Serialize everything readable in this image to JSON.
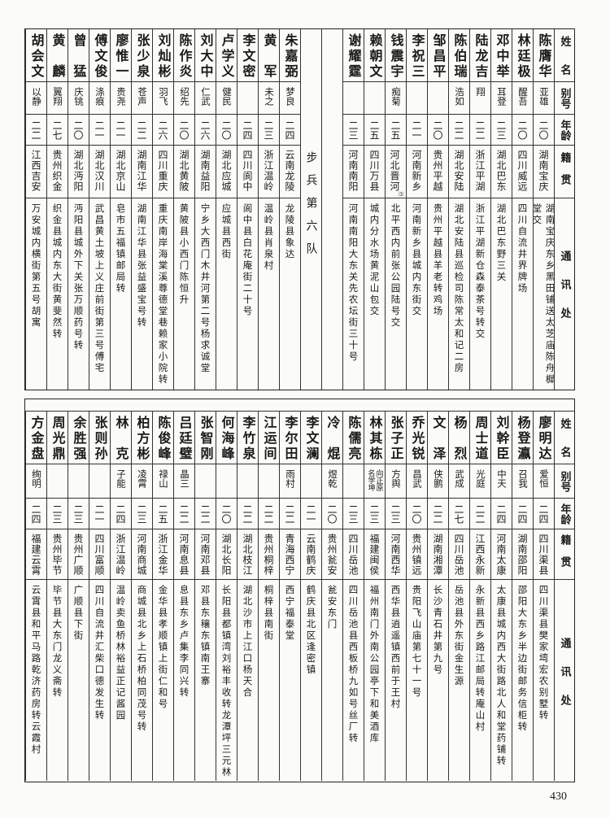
{
  "headers": {
    "name": "姓名",
    "alias": "别号",
    "age": "年龄",
    "origin": "籍贯",
    "address": "通讯处"
  },
  "division_label": "步兵第六队",
  "top": {
    "right_rows": [
      {
        "name": "陈膺华",
        "alias": "亚雄",
        "age": "二〇",
        "origin": "湖南宝庆",
        "address": "湖南宝庆东乡黑田铺送太芝庙陈舟樨堂交"
      },
      {
        "name": "林廷极",
        "alias": "醒吾",
        "age": "二〇",
        "origin": "四川威远",
        "address": "四川自流井界牌场"
      },
      {
        "name": "邓中举",
        "alias": "耳登",
        "age": "二三",
        "origin": "湖北巴东",
        "address": "湖北巴东野三关"
      },
      {
        "name": "陆龙吉",
        "alias": "翔",
        "age": "二二",
        "origin": "浙江平湖",
        "address": "浙江平湖新仓森泰茶号转交"
      },
      {
        "name": "陈伯瑞",
        "alias": "浩如",
        "age": "二二",
        "origin": "湖北安陆",
        "address": "湖北安陆县巡检司陈常太和记二房"
      },
      {
        "name": "邹昌平",
        "alias": "",
        "age": "二〇",
        "origin": "贵州平越",
        "address": "贵州平越县羊老转鸡场"
      },
      {
        "name": "李祝三",
        "alias": "",
        "age": "二一",
        "origin": "河南新乡",
        "address": "河南新乡县城内东街交"
      },
      {
        "name": "钱震宇",
        "alias": "痴菊",
        "age": "二五",
        "origin": "河北晋河",
        "origin_note": "⑶",
        "address": "北平西内前张公园陆号交"
      },
      {
        "name": "赖朝文",
        "alias": "",
        "age": "二五",
        "origin": "四川万县",
        "address": "城内分水场黄泥山包交"
      },
      {
        "name": "谢耀霆",
        "alias": "",
        "age": "二三",
        "origin": "河南南阳",
        "address": "河南南阳大东关先农坛街三十号"
      }
    ],
    "left_rows": [
      {
        "name": "朱嘉弼",
        "alias": "梦良",
        "age": "二四",
        "origin": "云南龙陵",
        "address": "龙陵县象达"
      },
      {
        "name": "黄军",
        "alias": "未之",
        "age": "二三",
        "origin": "浙江温岭",
        "address": "温岭县肖泉村"
      },
      {
        "name": "李文密",
        "alias": "",
        "age": "二四",
        "origin": "四川阆中",
        "address": "阆中县白花庵街二十号"
      },
      {
        "name": "卢学义",
        "alias": "健民",
        "age": "二〇",
        "origin": "湖北应城",
        "address": "应城县西街"
      },
      {
        "name": "刘大中",
        "alias": "仁武",
        "age": "二六",
        "origin": "湖南益阳",
        "address": "宁乡大西门木井河第二号杨求诚堂"
      },
      {
        "name": "陈作炎",
        "alias": "绍先",
        "age": "二〇",
        "origin": "湖北黄陂",
        "address": "黄陂县小西门陈恒升"
      },
      {
        "name": "刘灿彬",
        "alias": "羽飞",
        "age": "二六",
        "origin": "四川重庆",
        "address": "重庆南岸海棠溪尊德堂巷赖家小院转"
      },
      {
        "name": "张少泉",
        "alias": "苍声",
        "age": "二二",
        "origin": "湖南江华",
        "address": "湖南江华县张益盛宝号转"
      },
      {
        "name": "廖惟一",
        "alias": "贵尧",
        "age": "二一",
        "origin": "湖北京山",
        "address": "皂市五福镇邮局转"
      },
      {
        "name": "傅文俊",
        "alias": "涤痕",
        "age": "二一",
        "origin": "湖北汉川",
        "address": "武昌黄土坡上义庄前街第三号傅宅"
      },
      {
        "name": "曾猛",
        "alias": "庆铫",
        "age": "二〇",
        "origin": "湖北沔阳",
        "address": "沔阳县城外下关张万顺药号转"
      },
      {
        "name": "黄麟",
        "alias": "翼翔",
        "age": "二七",
        "origin": "贵州织金",
        "address": "织金县城内东大街黄斐然转"
      },
      {
        "name": "胡会文",
        "alias": "以静",
        "age": "二二",
        "origin": "江西吉安",
        "address": "万安城内横街第五号胡寓"
      }
    ]
  },
  "bottom": {
    "rows": [
      {
        "name": "廖明达",
        "alias": "爱恒",
        "age": "二四",
        "origin": "四川渠县",
        "address": "四川渠县樊家塆宏农别墅转"
      },
      {
        "name": "杨登瀛",
        "alias": "召我",
        "age": "二四",
        "origin": "湖南邵阳",
        "address": "邵阳大东乡半边街邮务信柜转"
      },
      {
        "name": "刘幹臣",
        "alias": "中天",
        "age": "二四",
        "origin": "河南太康",
        "address": "太康县城内西大街路北人和堂药铺转"
      },
      {
        "name": "周士道",
        "alias": "光庭",
        "age": "二二",
        "origin": "江西永新",
        "address": "永新县西乡路江邮局转庵山村"
      },
      {
        "name": "杨烈",
        "alias": "武成",
        "age": "二七",
        "origin": "四川岳池",
        "address": "岳池县外东街金生源"
      },
      {
        "name": "文泽",
        "alias": "侠鹏",
        "age": "二二",
        "origin": "湖南湘潭",
        "address": "长沙青石井第九号"
      },
      {
        "name": "乔光锐",
        "alias": "昌武",
        "age": "二〇",
        "origin": "贵州镇远",
        "address": "贵阳飞山庙第七十一号"
      },
      {
        "name": "张子正",
        "alias": "方舆",
        "age": "二三",
        "origin": "河南西华",
        "address": "西华县逍遥镇西前于王村"
      },
      {
        "name": "林其栋",
        "alias": "向正原名学坤",
        "age": "二三",
        "origin": "福建闽侯",
        "address": "福州南门外南公园亭下和美酒库"
      },
      {
        "name": "陈儒亮",
        "alias": "",
        "age": "二三",
        "origin": "四川岳池",
        "address": "四川岳池县西板桥九如号丝厂转"
      },
      {
        "name": "冷焜",
        "alias": "煜乾",
        "age": "二〇",
        "origin": "贵州瓮安",
        "address": "瓮安东门"
      },
      {
        "name": "李文澜",
        "alias": "",
        "age": "二一",
        "origin": "云南鹤庆",
        "address": "鹤庆县北区逢密镇"
      },
      {
        "name": "李尔田",
        "alias": "雨村",
        "age": "二二",
        "origin": "青海西宁",
        "address": "西宁福泰堂"
      },
      {
        "name": "江运间",
        "alias": "",
        "age": "二二",
        "origin": "贵州桐梓",
        "address": "桐梓县南街"
      },
      {
        "name": "李竹泉",
        "alias": "",
        "age": "二二",
        "origin": "湖北枝江",
        "address": "湖北沙市上江口杨天合"
      },
      {
        "name": "何海峰",
        "alias": "",
        "age": "二〇",
        "origin": "湖北长阳",
        "address": "长阳县都镇湾刘裕丰收转龙潭坪三元林"
      },
      {
        "name": "张智刚",
        "alias": "",
        "age": "二二",
        "origin": "河南邓县",
        "address": "邓县东穰东镇南王寨"
      },
      {
        "name": "吕廷璧",
        "alias": "晶三",
        "age": "二二",
        "origin": "河南息县",
        "address": "息县东乡卢集李同兴转"
      },
      {
        "name": "陈俊峰",
        "alias": "禄山",
        "age": "二五",
        "origin": "浙江金华",
        "address": "金华县孝顺镇上街仁和号"
      },
      {
        "name": "柏方彬",
        "alias": "凌霄",
        "age": "二三",
        "origin": "河南商城",
        "address": "商城县北乡上石桥柏同茂号转"
      },
      {
        "name": "林克",
        "alias": "子能",
        "age": "二四",
        "origin": "浙江温岭",
        "address": "温岭卖鱼桥林裕益正记酱园"
      },
      {
        "name": "张则孙",
        "alias": "",
        "age": "二一",
        "origin": "四川富顺",
        "address": "四川自流井汇柴口德发生转"
      },
      {
        "name": "余胜强",
        "alias": "",
        "age": "二三",
        "origin": "贵州广顺",
        "address": "广顺县下街"
      },
      {
        "name": "周光鼎",
        "alias": "",
        "age": "二三",
        "origin": "贵州毕节",
        "address": "毕节县大东门龙义斋转"
      },
      {
        "name": "方金盘",
        "alias": "绚明",
        "age": "二四",
        "origin": "福建云霄",
        "address": "云霄县和平马路乾济药房转云霞村"
      }
    ]
  },
  "page_number": "430"
}
